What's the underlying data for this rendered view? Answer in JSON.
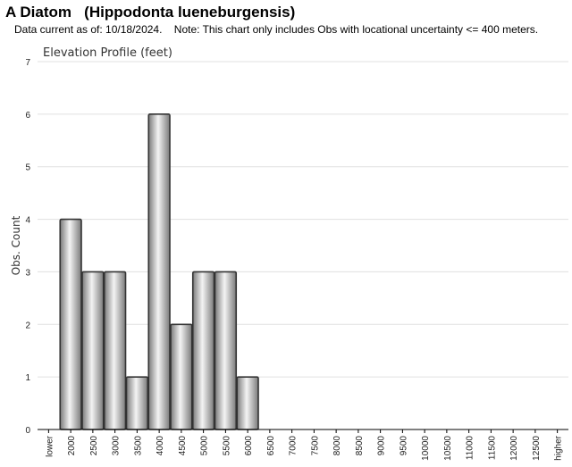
{
  "header": {
    "title": "A Diatom   (Hippodonta lueneburgensis)",
    "subtitle": "Data current as of: 10/18/2024.    Note: This chart only includes Obs with locational uncertainty <= 400 meters."
  },
  "chart_data": {
    "type": "bar",
    "title": "Elevation Profile (feet)",
    "xlabel": "",
    "ylabel": "Obs. Count",
    "ylim": [
      0,
      7
    ],
    "yticks": [
      0,
      1,
      2,
      3,
      4,
      5,
      6,
      7
    ],
    "grid": true,
    "categories": [
      "lower",
      "2000",
      "2500",
      "3000",
      "3500",
      "4000",
      "4500",
      "5000",
      "5500",
      "6000",
      "6500",
      "7000",
      "7500",
      "8000",
      "8500",
      "9000",
      "9500",
      "10000",
      "10500",
      "11000",
      "11500",
      "12000",
      "12500",
      "higher"
    ],
    "values": [
      0,
      4,
      3,
      3,
      1,
      6,
      2,
      3,
      3,
      1,
      0,
      0,
      0,
      0,
      0,
      0,
      0,
      0,
      0,
      0,
      0,
      0,
      0,
      0
    ],
    "colors": {
      "bar_light": "#f4f4f4",
      "bar_dark": "#7a7a7a",
      "bar_stroke": "#333333",
      "grid": "#e0e0e0",
      "axis": "#000000"
    }
  }
}
